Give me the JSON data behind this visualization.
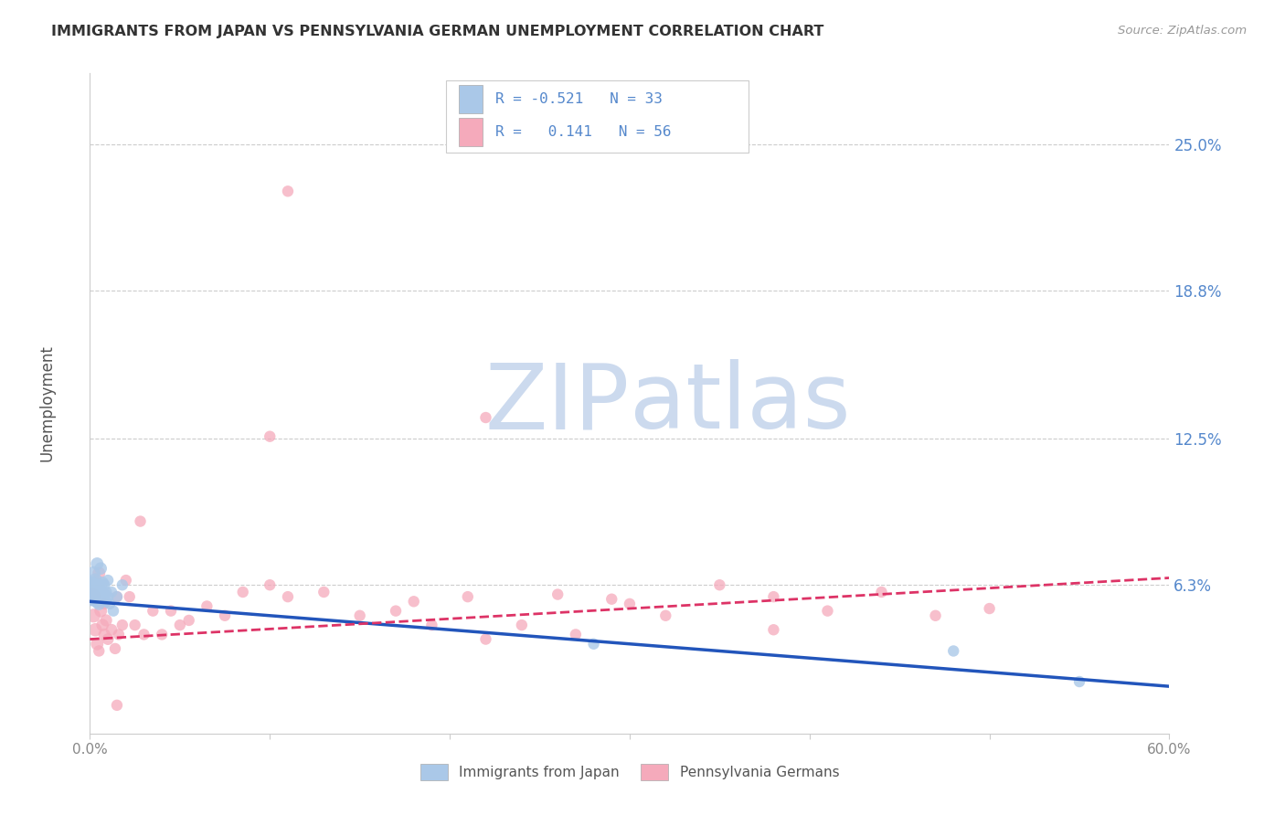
{
  "title": "IMMIGRANTS FROM JAPAN VS PENNSYLVANIA GERMAN UNEMPLOYMENT CORRELATION CHART",
  "source": "Source: ZipAtlas.com",
  "ylabel": "Unemployment",
  "x_min": 0.0,
  "x_max": 0.6,
  "y_min": 0.0,
  "y_max": 0.28,
  "yticks": [
    0.063,
    0.125,
    0.188,
    0.25
  ],
  "ytick_labels": [
    "6.3%",
    "12.5%",
    "18.8%",
    "25.0%"
  ],
  "xtick_positions": [
    0.0,
    0.1,
    0.2,
    0.3,
    0.4,
    0.5,
    0.6
  ],
  "xtick_labels": [
    "0.0%",
    "",
    "",
    "",
    "",
    "",
    "60.0%"
  ],
  "series1_label": "Immigrants from Japan",
  "series2_label": "Pennsylvania Germans",
  "series1_color": "#aac8e8",
  "series2_color": "#f5aabb",
  "series1_line_color": "#2255bb",
  "series2_line_color": "#dd3366",
  "R1": -0.521,
  "N1": 33,
  "R2": 0.141,
  "N2": 56,
  "trend1_x": [
    0.0,
    0.6
  ],
  "trend1_y": [
    0.056,
    0.02
  ],
  "trend2_x": [
    0.0,
    0.6
  ],
  "trend2_y": [
    0.04,
    0.066
  ],
  "blue_points_x": [
    0.001,
    0.001,
    0.002,
    0.002,
    0.002,
    0.003,
    0.003,
    0.003,
    0.004,
    0.004,
    0.004,
    0.005,
    0.005,
    0.005,
    0.006,
    0.006,
    0.007,
    0.007,
    0.007,
    0.008,
    0.008,
    0.009,
    0.009,
    0.01,
    0.01,
    0.011,
    0.012,
    0.013,
    0.015,
    0.018,
    0.28,
    0.48,
    0.55
  ],
  "blue_points_y": [
    0.06,
    0.063,
    0.058,
    0.062,
    0.068,
    0.057,
    0.06,
    0.065,
    0.056,
    0.061,
    0.072,
    0.059,
    0.063,
    0.055,
    0.058,
    0.07,
    0.057,
    0.06,
    0.064,
    0.059,
    0.063,
    0.056,
    0.06,
    0.058,
    0.065,
    0.055,
    0.06,
    0.052,
    0.058,
    0.063,
    0.038,
    0.035,
    0.022
  ],
  "blue_sizes": [
    500,
    180,
    160,
    140,
    120,
    140,
    130,
    120,
    110,
    110,
    100,
    100,
    100,
    100,
    95,
    95,
    90,
    90,
    90,
    85,
    85,
    85,
    85,
    80,
    80,
    80,
    80,
    80,
    80,
    80,
    80,
    80,
    80
  ],
  "pink_points_x": [
    0.001,
    0.002,
    0.003,
    0.004,
    0.005,
    0.006,
    0.007,
    0.008,
    0.009,
    0.01,
    0.012,
    0.014,
    0.015,
    0.016,
    0.018,
    0.02,
    0.022,
    0.025,
    0.028,
    0.03,
    0.035,
    0.04,
    0.045,
    0.055,
    0.065,
    0.075,
    0.085,
    0.1,
    0.11,
    0.13,
    0.15,
    0.17,
    0.19,
    0.21,
    0.24,
    0.27,
    0.29,
    0.32,
    0.35,
    0.38,
    0.41,
    0.44,
    0.47,
    0.5,
    0.22,
    0.3,
    0.38,
    0.1,
    0.18,
    0.26,
    0.005,
    0.008,
    0.015,
    0.05,
    0.11,
    0.22
  ],
  "pink_points_y": [
    0.058,
    0.05,
    0.044,
    0.038,
    0.068,
    0.052,
    0.046,
    0.042,
    0.048,
    0.04,
    0.044,
    0.036,
    0.058,
    0.042,
    0.046,
    0.065,
    0.058,
    0.046,
    0.09,
    0.042,
    0.052,
    0.042,
    0.052,
    0.048,
    0.054,
    0.05,
    0.06,
    0.126,
    0.058,
    0.06,
    0.05,
    0.052,
    0.046,
    0.058,
    0.046,
    0.042,
    0.057,
    0.05,
    0.063,
    0.044,
    0.052,
    0.06,
    0.05,
    0.053,
    0.04,
    0.055,
    0.058,
    0.063,
    0.056,
    0.059,
    0.035,
    0.055,
    0.012,
    0.046,
    0.23,
    0.134
  ],
  "pink_sizes": [
    200,
    120,
    110,
    100,
    100,
    100,
    95,
    90,
    90,
    85,
    85,
    80,
    80,
    80,
    80,
    80,
    80,
    80,
    80,
    80,
    80,
    80,
    80,
    80,
    80,
    80,
    80,
    80,
    80,
    80,
    80,
    80,
    80,
    80,
    80,
    80,
    80,
    80,
    80,
    80,
    80,
    80,
    80,
    80,
    80,
    80,
    80,
    80,
    80,
    80,
    80,
    80,
    80,
    80,
    80,
    80
  ],
  "watermark_zip": "ZIP",
  "watermark_atlas": "atlas",
  "watermark_color": "#ccdaee",
  "background_color": "#ffffff",
  "grid_color": "#cccccc",
  "tick_label_color_right": "#5588cc",
  "tick_label_color_bottom": "#888888",
  "title_color": "#333333",
  "source_color": "#999999"
}
